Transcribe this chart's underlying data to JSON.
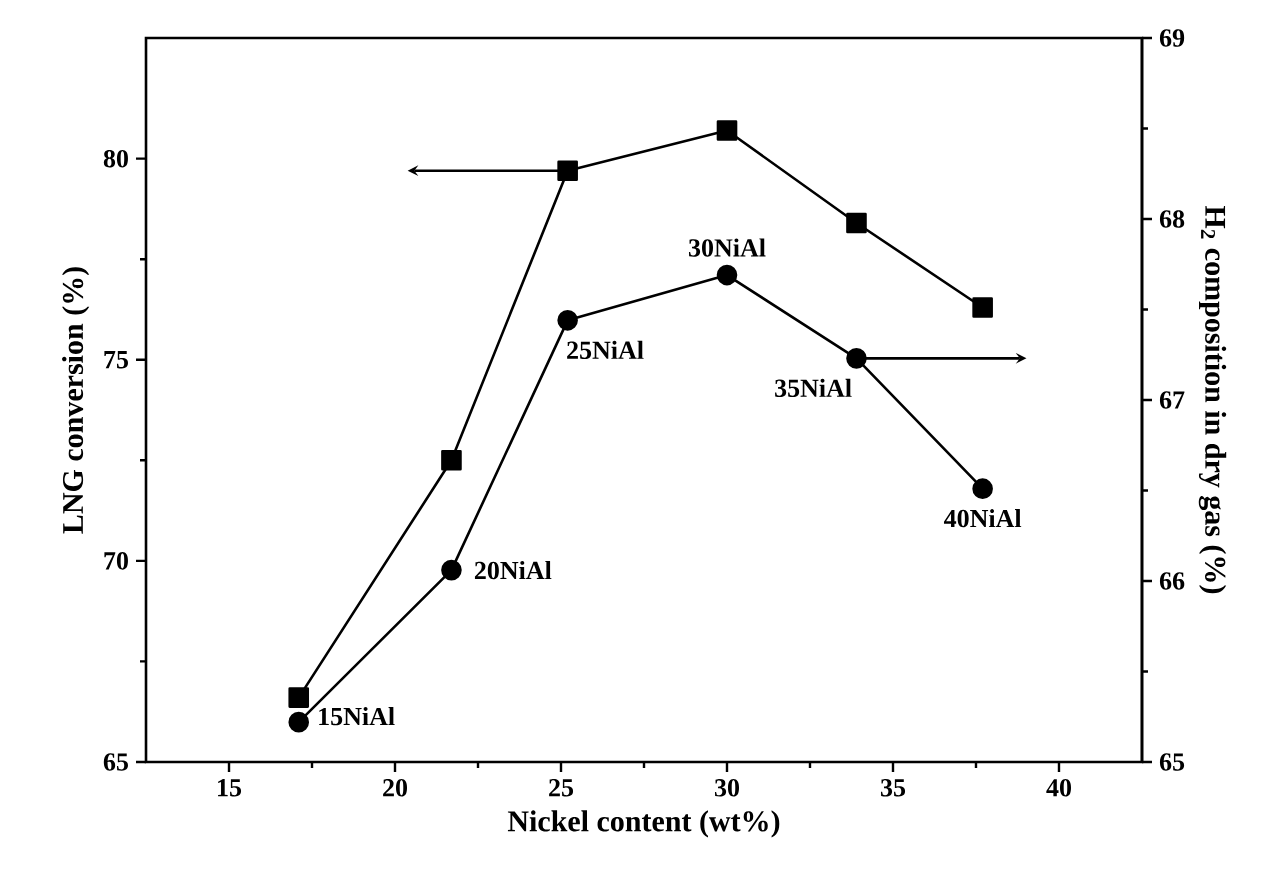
{
  "chart_data": {
    "type": "line",
    "xlabel": "Nickel content (wt%)",
    "ylabel": "LNG conversion (%)",
    "y2label": "H$_{2}$ composition in dry gas (%)",
    "x": [
      17.1,
      21.7,
      25.2,
      30.0,
      33.9,
      37.7
    ],
    "xlim": [
      12.5,
      42.5
    ],
    "xticks": [
      15,
      20,
      25,
      30,
      35,
      40
    ],
    "ylim": [
      65,
      83
    ],
    "yticks": [
      65,
      70,
      75,
      80
    ],
    "y2lim": [
      65,
      69
    ],
    "y2ticks": [
      65,
      66,
      67,
      68,
      69
    ],
    "series": [
      {
        "color": "#000000",
        "marker": "square",
        "values": [
          66.6,
          72.5,
          79.7,
          80.7,
          78.4,
          76.3
        ]
      },
      {
        "color": "#000000",
        "marker": "circle",
        "axis": "y2",
        "values": [
          65.22,
          66.06,
          67.44,
          67.69,
          67.23,
          66.51
        ]
      }
    ],
    "annotations": [
      "15NiAl",
      "20NiAl",
      "25NiAl",
      "30NiAl",
      "35NiAl",
      "40NiAl"
    ]
  }
}
